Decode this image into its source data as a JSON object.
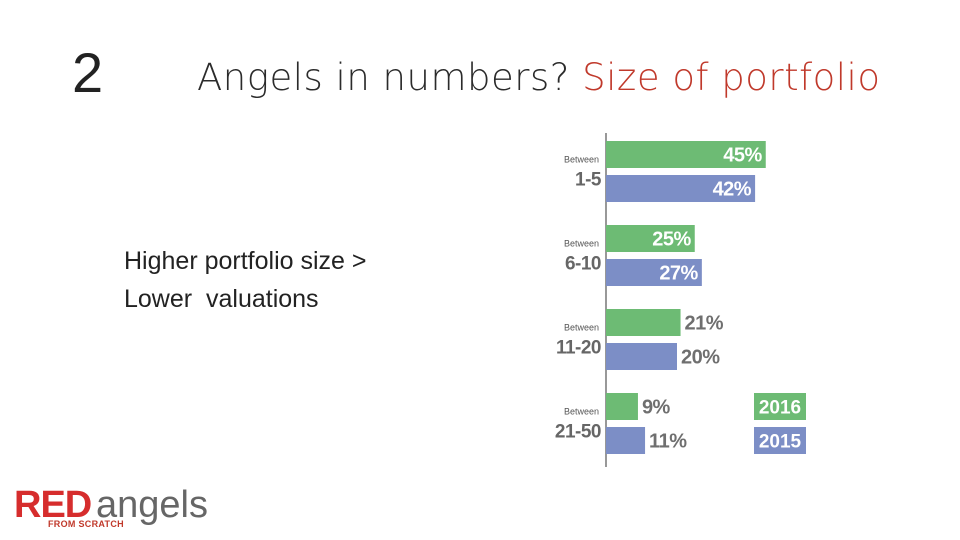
{
  "slide": {
    "number": "2",
    "title_main": "Angels in numbers?",
    "title_accent": "Size of portfolio",
    "body_line1": "Higher portfolio size >",
    "body_line2": "Lower  valuations"
  },
  "logo": {
    "red": "RED",
    "angels": "angels",
    "sub": "FROM SCRATCH"
  },
  "colors": {
    "series_2016": "#6dbb74",
    "series_2015": "#7c8ec6",
    "title_accent": "#c0392b"
  },
  "chart_data": {
    "type": "bar",
    "orientation": "horizontal",
    "categories": [
      "1-5",
      "6-10",
      "11-20",
      "21-50"
    ],
    "category_prefix": "Between",
    "series": [
      {
        "name": "2016",
        "values": [
          45,
          25,
          21,
          9
        ],
        "labels": [
          "45%",
          "25%",
          "21%",
          "9%"
        ]
      },
      {
        "name": "2015",
        "values": [
          42,
          27,
          20,
          11
        ],
        "labels": [
          "42%",
          "27%",
          "20%",
          "11%"
        ]
      }
    ],
    "unit": "%",
    "legend_position": "bottom-right",
    "grid": false
  }
}
